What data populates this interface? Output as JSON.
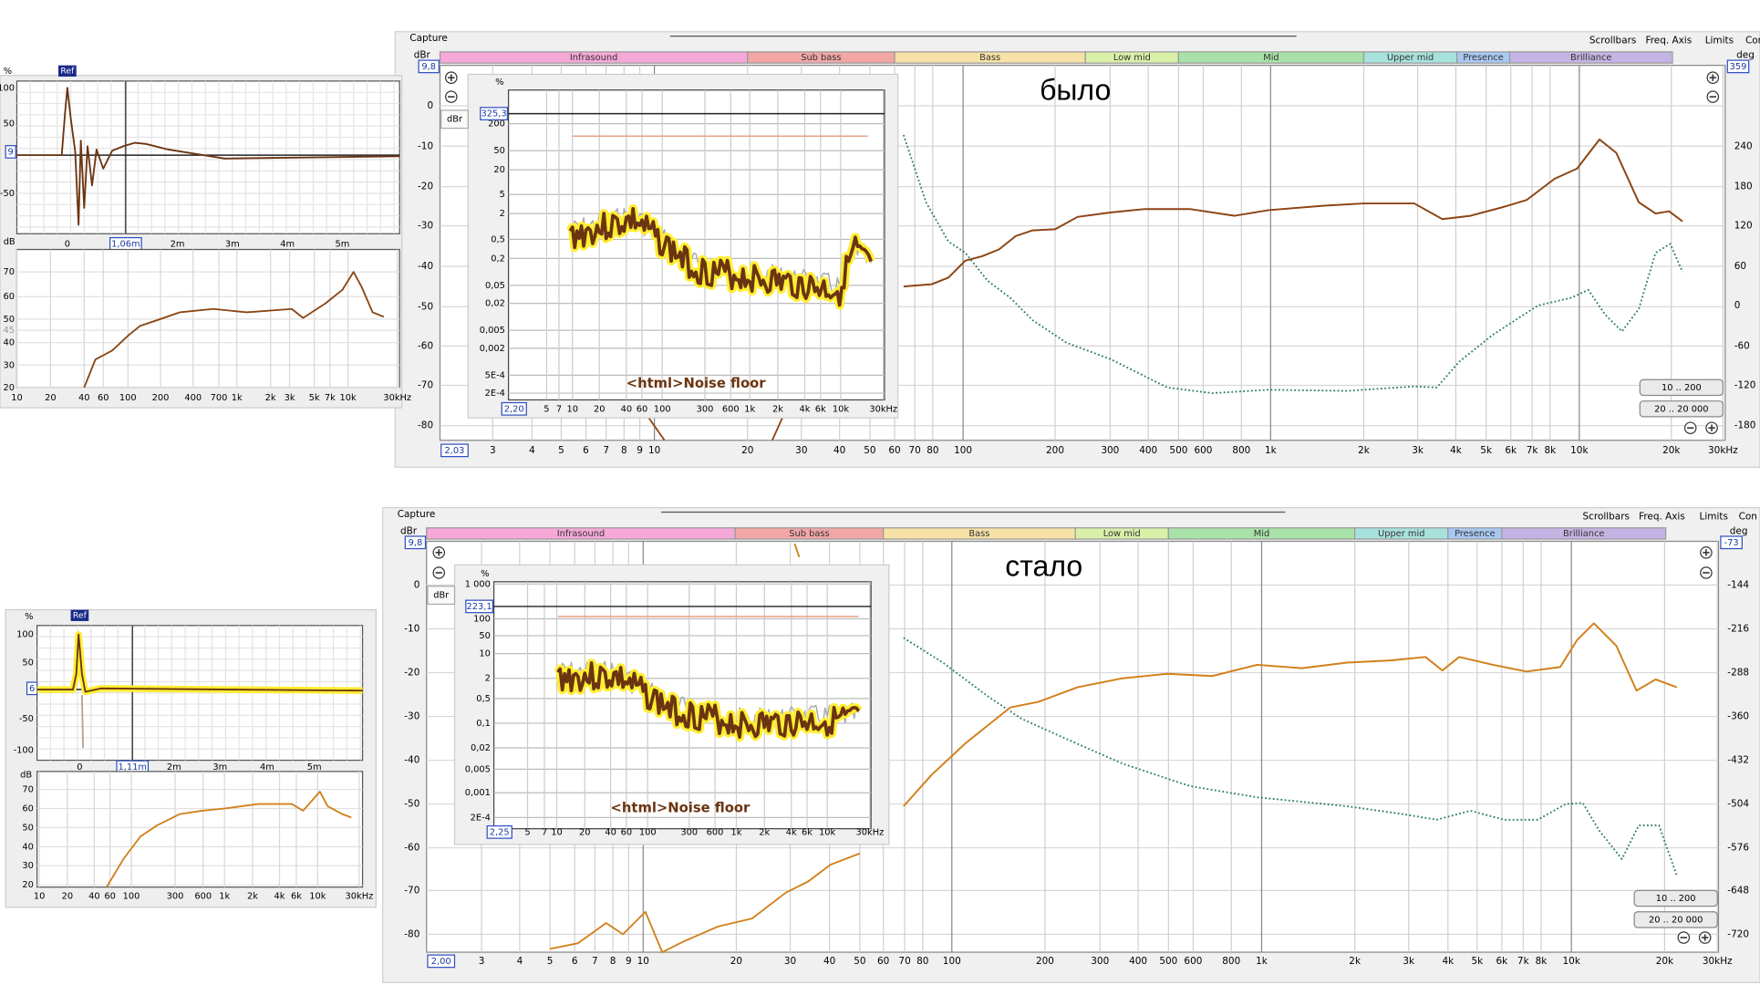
{
  "top": {
    "header": {
      "capture": "Capture",
      "menu": [
        "Scrollbars",
        "Freq. Axis",
        "Limits",
        "Con"
      ]
    },
    "caption": "было",
    "bands": [
      "Infrasound",
      "Sub bass",
      "Bass",
      "Low mid",
      "Mid",
      "Upper mid",
      "Presence",
      "Brilliance"
    ],
    "y_unit": "dBr",
    "y_max": "9,8",
    "y_ticks": [
      "0",
      "-10",
      "-20",
      "-30",
      "-40",
      "-50",
      "-60",
      "-70",
      "-80"
    ],
    "y2_unit": "deg",
    "y2_max": "359",
    "y2_ticks": [
      "240",
      "180",
      "120",
      "60",
      "0",
      "-60",
      "-120",
      "-180"
    ],
    "x_min": "2,03",
    "x_ticks": [
      "3",
      "4",
      "5",
      "6",
      "7",
      "8",
      "9",
      "10",
      "20",
      "30",
      "40",
      "50",
      "60",
      "70",
      "80",
      "100",
      "200",
      "300",
      "400",
      "500",
      "600",
      "800",
      "1k",
      "2k",
      "3k",
      "4k",
      "5k",
      "6k",
      "7k",
      "8k",
      "10k",
      "20k",
      "30kHz"
    ],
    "buttons": [
      "10 .. 200",
      "20 .. 20 000"
    ],
    "inset": {
      "y_unit": "%",
      "y_button": "dBr",
      "y_marker": "325,3",
      "y_ticks": [
        "200",
        "50",
        "20",
        "5",
        "2",
        "0,5",
        "0,2",
        "0,05",
        "0,02",
        "0,005",
        "0,002",
        "5E-4",
        "2E-4"
      ],
      "x_min": "2,20",
      "x_ticks": [
        "5",
        "7",
        "10",
        "20",
        "40",
        "60",
        "100",
        "300",
        "600",
        "1k",
        "2k",
        "4k",
        "6k",
        "10k",
        "30kHz"
      ],
      "title": "<html>Noise floor"
    },
    "side": {
      "impulse": {
        "y_unit": "%",
        "ref": "Ref",
        "y_ticks": [
          "100",
          "50",
          "-50"
        ],
        "y_marker": "9",
        "x_ticks": [
          "0",
          "2m",
          "3m",
          "4m",
          "5m"
        ],
        "x_marker": "1,06m"
      },
      "spectrum": {
        "y_unit": "dB",
        "y_ticks": [
          "70",
          "60",
          "50",
          "45",
          "40",
          "30",
          "20"
        ],
        "x_ticks": [
          "10",
          "20",
          "40",
          "60",
          "100",
          "200",
          "400",
          "700",
          "1k",
          "2k",
          "3k",
          "5k",
          "7k",
          "10k",
          "30kHz"
        ]
      }
    }
  },
  "bottom": {
    "header": {
      "capture": "Capture",
      "menu": [
        "Scrollbars",
        "Freq. Axis",
        "Limits",
        "Con"
      ]
    },
    "caption": "стало",
    "bands": [
      "Infrasound",
      "Sub bass",
      "Bass",
      "Low mid",
      "Mid",
      "Upper mid",
      "Presence",
      "Brilliance"
    ],
    "y_unit": "dBr",
    "y_max": "9,8",
    "y_ticks": [
      "0",
      "-10",
      "-20",
      "-30",
      "-40",
      "-50",
      "-60",
      "-70",
      "-80"
    ],
    "y2_unit": "deg",
    "y2_max": "-73",
    "y2_ticks": [
      "-144",
      "-216",
      "-288",
      "-360",
      "-432",
      "-504",
      "-576",
      "-648",
      "-720"
    ],
    "x_min": "2,00",
    "x_ticks": [
      "3",
      "4",
      "5",
      "6",
      "7",
      "8",
      "9",
      "10",
      "20",
      "30",
      "40",
      "50",
      "60",
      "70",
      "80",
      "100",
      "200",
      "300",
      "400",
      "500",
      "600",
      "800",
      "1k",
      "2k",
      "3k",
      "4k",
      "5k",
      "6k",
      "7k",
      "8k",
      "10k",
      "20k",
      "30kHz"
    ],
    "buttons": [
      "10 .. 200",
      "20 .. 20 000"
    ],
    "inset": {
      "y_unit": "%",
      "y_button": "dBr",
      "y_marker": "223,1",
      "y_ticks": [
        "1 000",
        "100",
        "50",
        "10",
        "2",
        "0,5",
        "0,1",
        "0,02",
        "0,005",
        "0,001",
        "2E-4"
      ],
      "x_min": "2,25",
      "x_ticks": [
        "5",
        "7",
        "10",
        "20",
        "40",
        "60",
        "100",
        "300",
        "600",
        "1k",
        "2k",
        "4k",
        "6k",
        "10k",
        "30kHz"
      ],
      "title": "<html>Noise floor"
    },
    "side": {
      "impulse": {
        "y_unit": "%",
        "ref": "Ref",
        "y_ticks": [
          "100",
          "50",
          "-50",
          "-100"
        ],
        "y_marker": "6",
        "x_ticks": [
          "0",
          "2m",
          "3m",
          "4m",
          "5m"
        ],
        "x_marker": "1,11m"
      },
      "spectrum": {
        "y_unit": "dB",
        "y_ticks": [
          "70",
          "60",
          "50",
          "40",
          "30",
          "20"
        ],
        "x_ticks": [
          "10",
          "20",
          "40",
          "60",
          "100",
          "300",
          "600",
          "1k",
          "2k",
          "4k",
          "6k",
          "10k",
          "30kHz"
        ]
      }
    }
  }
}
